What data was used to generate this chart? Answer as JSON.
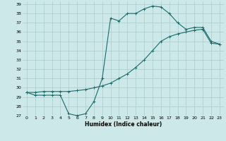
{
  "xlabel": "Humidex (Indice chaleur)",
  "bg_color": "#cce8e8",
  "grid_color": "#aacccc",
  "line_color": "#1a6b6b",
  "xlim": [
    -0.5,
    23.5
  ],
  "ylim": [
    27,
    39.3
  ],
  "xticks": [
    0,
    1,
    2,
    3,
    4,
    5,
    6,
    7,
    8,
    9,
    10,
    11,
    12,
    13,
    14,
    15,
    16,
    17,
    18,
    19,
    20,
    21,
    22,
    23
  ],
  "yticks": [
    27,
    28,
    29,
    30,
    31,
    32,
    33,
    34,
    35,
    36,
    37,
    38,
    39
  ],
  "line1_x": [
    0,
    1,
    2,
    3,
    4,
    5,
    6,
    7,
    8,
    9,
    10,
    11,
    12,
    13,
    14,
    15,
    16,
    17,
    18,
    19,
    20,
    21,
    22,
    23
  ],
  "line1_y": [
    29.5,
    29.2,
    29.2,
    29.2,
    29.2,
    27.2,
    27.0,
    27.2,
    28.5,
    31.0,
    37.5,
    37.2,
    38.0,
    38.0,
    38.5,
    38.8,
    38.7,
    38.0,
    37.0,
    36.3,
    36.5,
    36.5,
    35.0,
    34.7
  ],
  "line2_x": [
    0,
    1,
    2,
    3,
    4,
    5,
    6,
    7,
    8,
    9,
    10,
    11,
    12,
    13,
    14,
    15,
    16,
    17,
    18,
    19,
    20,
    21,
    22,
    23
  ],
  "line2_y": [
    29.5,
    29.5,
    29.6,
    29.6,
    29.6,
    29.6,
    29.7,
    29.8,
    30.0,
    30.2,
    30.5,
    31.0,
    31.5,
    32.2,
    33.0,
    34.0,
    35.0,
    35.5,
    35.8,
    36.0,
    36.2,
    36.3,
    34.8,
    34.7
  ]
}
